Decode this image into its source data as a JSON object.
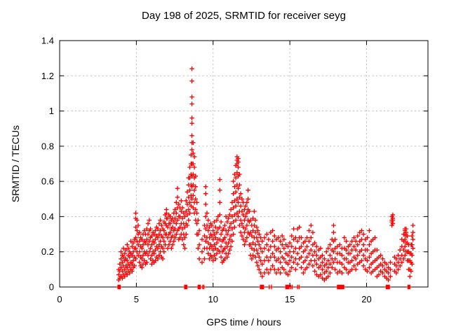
{
  "page": {
    "title": "Day 198 of 2025, SRMTID for receiver seyg"
  },
  "chart_data": {
    "type": "scatter",
    "title": "Day 198 of 2025, SRMTID for receiver seyg",
    "xlabel": "GPS time / hours",
    "ylabel": "SRMTID / TECUs",
    "xlim": [
      0,
      24
    ],
    "ylim": [
      0,
      1.4
    ],
    "xticks": [
      0,
      5,
      10,
      15,
      20
    ],
    "yticks": [
      0,
      0.2,
      0.4,
      0.6,
      0.8,
      1,
      1.2,
      1.4
    ],
    "grid": true,
    "legend_position": "none",
    "marker": "plus",
    "marker_color": "#ff0000",
    "grid_color": "#b3b3b3",
    "axis_color": "#000000",
    "background_color": "#ffffff",
    "columns_format": "each entry is [gps_hour, value1, value2, ...] = one epoch column of SRMTID samples (TECUs)",
    "columns": [
      [
        3.85,
        0.04,
        0.07,
        0.1
      ],
      [
        3.92,
        0.05,
        0.09,
        0.13
      ],
      [
        4.0,
        0.06,
        0.11,
        0.16,
        0.2
      ],
      [
        4.08,
        0.05,
        0.09,
        0.14,
        0.18
      ],
      [
        4.16,
        0.07,
        0.12,
        0.17,
        0.22
      ],
      [
        4.24,
        0.06,
        0.1,
        0.15,
        0.19
      ],
      [
        4.32,
        0.08,
        0.12,
        0.16,
        0.21
      ],
      [
        4.4,
        0.07,
        0.11,
        0.15,
        0.24
      ],
      [
        4.48,
        0.09,
        0.13,
        0.18,
        0.22
      ],
      [
        4.56,
        0.08,
        0.12,
        0.17,
        0.2
      ],
      [
        4.64,
        0.1,
        0.14,
        0.19,
        0.26
      ],
      [
        4.72,
        0.09,
        0.13,
        0.18,
        0.23
      ],
      [
        4.8,
        0.11,
        0.15,
        0.2,
        0.25
      ],
      [
        4.88,
        0.12,
        0.17,
        0.22,
        0.27
      ],
      [
        4.96,
        0.16,
        0.22,
        0.28,
        0.34,
        0.39,
        0.42
      ],
      [
        5.04,
        0.2,
        0.26,
        0.32,
        0.38
      ],
      [
        5.12,
        0.18,
        0.24,
        0.3,
        0.35
      ],
      [
        5.2,
        0.14,
        0.2,
        0.26,
        0.31
      ],
      [
        5.28,
        0.12,
        0.17,
        0.23,
        0.28
      ],
      [
        5.36,
        0.11,
        0.16,
        0.22,
        0.27
      ],
      [
        5.44,
        0.13,
        0.18,
        0.24,
        0.3
      ],
      [
        5.52,
        0.15,
        0.2,
        0.26,
        0.32
      ],
      [
        5.6,
        0.13,
        0.19,
        0.25,
        0.3
      ],
      [
        5.68,
        0.14,
        0.2,
        0.27,
        0.33
      ],
      [
        5.76,
        0.18,
        0.24,
        0.3,
        0.36
      ],
      [
        5.84,
        0.2,
        0.26,
        0.32,
        0.38
      ],
      [
        5.92,
        0.16,
        0.22,
        0.28,
        0.33
      ],
      [
        6.0,
        0.13,
        0.18,
        0.24,
        0.29
      ],
      [
        6.08,
        0.15,
        0.2,
        0.26,
        0.31
      ],
      [
        6.16,
        0.14,
        0.19,
        0.25,
        0.3
      ],
      [
        6.24,
        0.15,
        0.21,
        0.27,
        0.32
      ],
      [
        6.32,
        0.17,
        0.23,
        0.29,
        0.34
      ],
      [
        6.4,
        0.16,
        0.22,
        0.28,
        0.33
      ],
      [
        6.48,
        0.18,
        0.24,
        0.3,
        0.36
      ],
      [
        6.56,
        0.2,
        0.26,
        0.32,
        0.38
      ],
      [
        6.64,
        0.17,
        0.23,
        0.29,
        0.35
      ],
      [
        6.72,
        0.16,
        0.22,
        0.28,
        0.33
      ],
      [
        6.8,
        0.2,
        0.26,
        0.32,
        0.37
      ],
      [
        6.88,
        0.24,
        0.3,
        0.36,
        0.41
      ],
      [
        6.96,
        0.3,
        0.35,
        0.39,
        0.42,
        0.44
      ],
      [
        7.04,
        0.22,
        0.28,
        0.34,
        0.39
      ],
      [
        7.12,
        0.24,
        0.3,
        0.36,
        0.41
      ],
      [
        7.2,
        0.26,
        0.31,
        0.36,
        0.4
      ],
      [
        7.28,
        0.22,
        0.28,
        0.33,
        0.38
      ],
      [
        7.36,
        0.24,
        0.29,
        0.34,
        0.39
      ],
      [
        7.44,
        0.26,
        0.32,
        0.37,
        0.42
      ],
      [
        7.52,
        0.28,
        0.33,
        0.39,
        0.44
      ],
      [
        7.6,
        0.3,
        0.36,
        0.42,
        0.48
      ],
      [
        7.68,
        0.32,
        0.38,
        0.45,
        0.51,
        0.56
      ],
      [
        7.76,
        0.27,
        0.33,
        0.4,
        0.47
      ],
      [
        7.84,
        0.28,
        0.34,
        0.4,
        0.45
      ],
      [
        7.92,
        0.3,
        0.36,
        0.43,
        0.49
      ],
      [
        8.0,
        0.27,
        0.33,
        0.39,
        0.45
      ],
      [
        8.08,
        0.24,
        0.3,
        0.36,
        0.42
      ],
      [
        8.16,
        0.22,
        0.28,
        0.34,
        0.4
      ],
      [
        8.24,
        0.3,
        0.36,
        0.43,
        0.49
      ],
      [
        8.32,
        0.35,
        0.41,
        0.47,
        0.54
      ],
      [
        8.4,
        0.38,
        0.44,
        0.51,
        0.58,
        0.62
      ],
      [
        8.48,
        0.42,
        0.48,
        0.55,
        0.62,
        0.68
      ],
      [
        8.56,
        0.46,
        0.52,
        0.58,
        0.64,
        0.7,
        0.75
      ],
      [
        8.62,
        0.5,
        0.57,
        0.63,
        0.7,
        0.78,
        0.82,
        0.86,
        0.93,
        0.96,
        1.04,
        1.08,
        1.17,
        1.24
      ],
      [
        8.7,
        0.45,
        0.52,
        0.58,
        0.64,
        0.7,
        0.76,
        0.82
      ],
      [
        8.78,
        0.42,
        0.48,
        0.55,
        0.62,
        0.68,
        0.74
      ],
      [
        8.86,
        0.38,
        0.44,
        0.5,
        0.57,
        0.63
      ],
      [
        8.94,
        0.3,
        0.36,
        0.42,
        0.48
      ],
      [
        9.02,
        0.22,
        0.3,
        0.38
      ],
      [
        9.1,
        0.16,
        0.24,
        0.32
      ],
      [
        9.28,
        0.14,
        0.2,
        0.27
      ],
      [
        9.44,
        0.16,
        0.22,
        0.29,
        0.35
      ],
      [
        9.52,
        0.26,
        0.33,
        0.4,
        0.47,
        0.53,
        0.57
      ],
      [
        9.6,
        0.22,
        0.28,
        0.35,
        0.42
      ],
      [
        9.68,
        0.19,
        0.25,
        0.32,
        0.38
      ],
      [
        9.76,
        0.16,
        0.22,
        0.28,
        0.34
      ],
      [
        9.84,
        0.18,
        0.24,
        0.3,
        0.36
      ],
      [
        9.92,
        0.17,
        0.23,
        0.29,
        0.35
      ],
      [
        10.0,
        0.15,
        0.21,
        0.27,
        0.32
      ],
      [
        10.08,
        0.18,
        0.24,
        0.3,
        0.37
      ],
      [
        10.16,
        0.16,
        0.22,
        0.28,
        0.34
      ],
      [
        10.24,
        0.19,
        0.25,
        0.31,
        0.38
      ],
      [
        10.32,
        0.21,
        0.27,
        0.33,
        0.4
      ],
      [
        10.44,
        0.2,
        0.27,
        0.34,
        0.41,
        0.48,
        0.55,
        0.61
      ],
      [
        10.52,
        0.17,
        0.23,
        0.3,
        0.37
      ],
      [
        10.6,
        0.14,
        0.2,
        0.26,
        0.32
      ],
      [
        10.68,
        0.15,
        0.21,
        0.27,
        0.33
      ],
      [
        10.76,
        0.16,
        0.22,
        0.28,
        0.35
      ],
      [
        10.84,
        0.19,
        0.25,
        0.32,
        0.4
      ],
      [
        10.92,
        0.17,
        0.23,
        0.3,
        0.37
      ],
      [
        11.0,
        0.19,
        0.25,
        0.32,
        0.39
      ],
      [
        11.08,
        0.21,
        0.27,
        0.34,
        0.41
      ],
      [
        11.16,
        0.23,
        0.29,
        0.36,
        0.44
      ],
      [
        11.24,
        0.26,
        0.33,
        0.4,
        0.48
      ],
      [
        11.32,
        0.3,
        0.37,
        0.45,
        0.53,
        0.6
      ],
      [
        11.4,
        0.34,
        0.41,
        0.49,
        0.57,
        0.64
      ],
      [
        11.48,
        0.38,
        0.46,
        0.54,
        0.62,
        0.69
      ],
      [
        11.56,
        0.42,
        0.5,
        0.58,
        0.65,
        0.7,
        0.72,
        0.74
      ],
      [
        11.64,
        0.4,
        0.48,
        0.56,
        0.63,
        0.68,
        0.71,
        0.73
      ],
      [
        11.72,
        0.35,
        0.43,
        0.51,
        0.58,
        0.64
      ],
      [
        11.8,
        0.31,
        0.38,
        0.46,
        0.53
      ],
      [
        11.88,
        0.29,
        0.36,
        0.43,
        0.5
      ],
      [
        11.96,
        0.27,
        0.34,
        0.41,
        0.48
      ],
      [
        12.04,
        0.24,
        0.31,
        0.38,
        0.44
      ],
      [
        12.12,
        0.26,
        0.33,
        0.4,
        0.46
      ],
      [
        12.2,
        0.28,
        0.35,
        0.42,
        0.48
      ],
      [
        12.28,
        0.31,
        0.38,
        0.44,
        0.5,
        0.55
      ],
      [
        12.36,
        0.24,
        0.3,
        0.37,
        0.43
      ],
      [
        12.44,
        0.18,
        0.24,
        0.31,
        0.38
      ],
      [
        12.52,
        0.16,
        0.22,
        0.29,
        0.35
      ],
      [
        12.6,
        0.18,
        0.25,
        0.32,
        0.39
      ],
      [
        12.68,
        0.21,
        0.28,
        0.35,
        0.43
      ],
      [
        12.76,
        0.17,
        0.24,
        0.31,
        0.38
      ],
      [
        12.84,
        0.14,
        0.21,
        0.28,
        0.34
      ],
      [
        12.92,
        0.12,
        0.19,
        0.26,
        0.32
      ],
      [
        13.0,
        0.1,
        0.17,
        0.24,
        0.3
      ],
      [
        13.1,
        0.08,
        0.15,
        0.22,
        0.28
      ],
      [
        13.2,
        0.06,
        0.13,
        0.2,
        0.26
      ],
      [
        13.35,
        0.08,
        0.15,
        0.22,
        0.28
      ],
      [
        13.5,
        0.1,
        0.17,
        0.24,
        0.3
      ],
      [
        13.62,
        0.08,
        0.15,
        0.21,
        0.27
      ],
      [
        13.75,
        0.1,
        0.17,
        0.23,
        0.31
      ],
      [
        13.88,
        0.12,
        0.19,
        0.26,
        0.32
      ],
      [
        14.0,
        0.1,
        0.17,
        0.23,
        0.29
      ],
      [
        14.12,
        0.08,
        0.15,
        0.21,
        0.27
      ],
      [
        14.25,
        0.1,
        0.16,
        0.22,
        0.28
      ],
      [
        14.38,
        0.08,
        0.14,
        0.2,
        0.26
      ],
      [
        14.5,
        0.11,
        0.17,
        0.24,
        0.29
      ],
      [
        14.62,
        0.1,
        0.16,
        0.22,
        0.27
      ],
      [
        14.75,
        0.08,
        0.14,
        0.19,
        0.24
      ],
      [
        14.88,
        0.07,
        0.13,
        0.18,
        0.23
      ],
      [
        15.0,
        0.09,
        0.15,
        0.2,
        0.25
      ],
      [
        15.12,
        0.11,
        0.17,
        0.23,
        0.29
      ],
      [
        15.25,
        0.14,
        0.2,
        0.27,
        0.33
      ],
      [
        15.38,
        0.1,
        0.16,
        0.22,
        0.28
      ],
      [
        15.5,
        0.13,
        0.19,
        0.26,
        0.33
      ],
      [
        15.62,
        0.16,
        0.22,
        0.28,
        0.34
      ],
      [
        15.75,
        0.11,
        0.17,
        0.23,
        0.28
      ],
      [
        15.88,
        0.08,
        0.14,
        0.2,
        0.25
      ],
      [
        16.0,
        0.1,
        0.15,
        0.21,
        0.26
      ],
      [
        16.12,
        0.11,
        0.17,
        0.23,
        0.28
      ],
      [
        16.25,
        0.13,
        0.19,
        0.26,
        0.32
      ],
      [
        16.38,
        0.15,
        0.21,
        0.28,
        0.35
      ],
      [
        16.5,
        0.12,
        0.18,
        0.24,
        0.31
      ],
      [
        16.62,
        0.09,
        0.15,
        0.2,
        0.25
      ],
      [
        16.75,
        0.07,
        0.13,
        0.18,
        0.23
      ],
      [
        16.88,
        0.06,
        0.11,
        0.16,
        0.21
      ],
      [
        17.0,
        0.07,
        0.12,
        0.17,
        0.22
      ],
      [
        17.12,
        0.05,
        0.1,
        0.14,
        0.18
      ],
      [
        17.25,
        0.04,
        0.08,
        0.12,
        0.16
      ],
      [
        17.38,
        0.05,
        0.09,
        0.13,
        0.2
      ],
      [
        17.5,
        0.06,
        0.11,
        0.15,
        0.22
      ],
      [
        17.62,
        0.08,
        0.13,
        0.18,
        0.24
      ],
      [
        17.75,
        0.11,
        0.16,
        0.21,
        0.27
      ],
      [
        17.85,
        0.14,
        0.2,
        0.26,
        0.31,
        0.35
      ],
      [
        17.95,
        0.1,
        0.16,
        0.22,
        0.27
      ],
      [
        18.1,
        0.08,
        0.14,
        0.19,
        0.23
      ],
      [
        18.25,
        0.09,
        0.14,
        0.19,
        0.24
      ],
      [
        18.4,
        0.08,
        0.13,
        0.18,
        0.22
      ],
      [
        18.55,
        0.11,
        0.16,
        0.22,
        0.28
      ],
      [
        18.68,
        0.1,
        0.16,
        0.21,
        0.26
      ],
      [
        18.8,
        0.08,
        0.14,
        0.19,
        0.23
      ],
      [
        18.92,
        0.09,
        0.14,
        0.19,
        0.24
      ],
      [
        19.05,
        0.1,
        0.15,
        0.21,
        0.26
      ],
      [
        19.18,
        0.12,
        0.17,
        0.23,
        0.28
      ],
      [
        19.3,
        0.1,
        0.16,
        0.21,
        0.26
      ],
      [
        19.42,
        0.13,
        0.18,
        0.24,
        0.29
      ],
      [
        19.55,
        0.14,
        0.2,
        0.26,
        0.31
      ],
      [
        19.68,
        0.15,
        0.21,
        0.27,
        0.32
      ],
      [
        19.8,
        0.12,
        0.18,
        0.24,
        0.3
      ],
      [
        19.92,
        0.1,
        0.16,
        0.21,
        0.27
      ],
      [
        20.05,
        0.09,
        0.15,
        0.21,
        0.28
      ],
      [
        20.18,
        0.11,
        0.17,
        0.24,
        0.32
      ],
      [
        20.3,
        0.08,
        0.13,
        0.19,
        0.26
      ],
      [
        20.42,
        0.09,
        0.14,
        0.2,
        0.27
      ],
      [
        20.55,
        0.1,
        0.15,
        0.21,
        0.28
      ],
      [
        20.68,
        0.06,
        0.11,
        0.16,
        0.21
      ],
      [
        20.8,
        0.07,
        0.12,
        0.17
      ],
      [
        20.92,
        0.09,
        0.13,
        0.18
      ],
      [
        21.05,
        0.08,
        0.12,
        0.16
      ],
      [
        21.18,
        0.06,
        0.1,
        0.14
      ],
      [
        21.3,
        0.05,
        0.09,
        0.13
      ],
      [
        21.42,
        0.04,
        0.08,
        0.11
      ],
      [
        21.55,
        0.06,
        0.1,
        0.14
      ],
      [
        21.65,
        0.35,
        0.37,
        0.38,
        0.4
      ],
      [
        21.71,
        0.36,
        0.38,
        0.39,
        0.41
      ],
      [
        21.82,
        0.09,
        0.13,
        0.17
      ],
      [
        21.94,
        0.08,
        0.12,
        0.16
      ],
      [
        22.06,
        0.1,
        0.14,
        0.18
      ],
      [
        22.18,
        0.12,
        0.16,
        0.21
      ],
      [
        22.3,
        0.14,
        0.18,
        0.23,
        0.27
      ],
      [
        22.42,
        0.16,
        0.21,
        0.26,
        0.3
      ],
      [
        22.5,
        0.18,
        0.23,
        0.27,
        0.3,
        0.32,
        0.33
      ],
      [
        22.58,
        0.2,
        0.25,
        0.29,
        0.31,
        0.33
      ],
      [
        22.66,
        0.15,
        0.2,
        0.25,
        0.29
      ],
      [
        22.74,
        0.1,
        0.15,
        0.2,
        0.24
      ],
      [
        22.82,
        0.06,
        0.1,
        0.15,
        0.19
      ],
      [
        22.9,
        0.09,
        0.14,
        0.19,
        0.24
      ],
      [
        22.96,
        0.13,
        0.18,
        0.24,
        0.29
      ],
      [
        23.02,
        0.22,
        0.27,
        0.31,
        0.35
      ]
    ],
    "zero_hours_format": "gps hours of samples with SRMTID = 0 (drawn on the x-axis as dense square-looking clusters)",
    "zero_hours": [
      3.8,
      3.83,
      3.86,
      3.89,
      3.92,
      3.95,
      8.14,
      8.17,
      8.2,
      8.23,
      8.26,
      8.29,
      9.02,
      9.05,
      9.08,
      9.11,
      9.14,
      9.17,
      9.32,
      9.4,
      13.08,
      13.11,
      13.14,
      13.17,
      13.2,
      13.23,
      13.26,
      13.29,
      13.66,
      13.8,
      14.74,
      14.77,
      14.8,
      14.83,
      14.86,
      14.89,
      14.92,
      14.95,
      15.05,
      15.15,
      15.5,
      15.6,
      18.1,
      18.13,
      18.16,
      18.19,
      18.22,
      18.25,
      18.28,
      18.31,
      18.34,
      18.37,
      18.4,
      18.43,
      18.46,
      18.49,
      18.52,
      21.28,
      21.31,
      21.34,
      21.37,
      21.4,
      21.43,
      21.46,
      21.49,
      22.7,
      22.76,
      22.82
    ]
  }
}
